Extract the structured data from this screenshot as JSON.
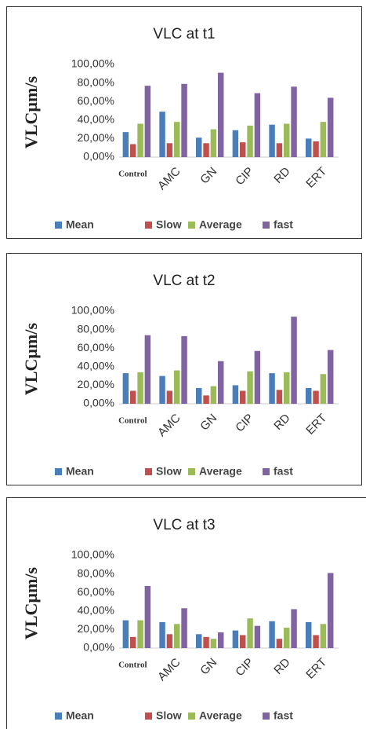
{
  "chart_data": [
    {
      "type": "bar",
      "title": "VLC at t1",
      "y_label": "VLCµm/s",
      "categories": [
        "Control",
        "AMC",
        "GN",
        "CIP",
        "RD",
        "ERT"
      ],
      "series": [
        {
          "name": "Mean",
          "color": "#4a7ebb",
          "values": [
            27,
            49,
            21,
            29,
            35,
            20
          ]
        },
        {
          "name": "Slow",
          "color": "#c0504d",
          "values": [
            14,
            15,
            15,
            16,
            15,
            17
          ]
        },
        {
          "name": "Average",
          "color": "#9bbb59",
          "values": [
            36,
            38,
            30,
            34,
            36,
            38
          ]
        },
        {
          "name": "fast",
          "color": "#8064a2",
          "values": [
            77,
            79,
            91,
            69,
            76,
            64
          ]
        }
      ],
      "ylim": [
        0,
        100
      ],
      "yticks": [
        {
          "value": 0,
          "label": "0,00%"
        },
        {
          "value": 20,
          "label": "20,00%"
        },
        {
          "value": 40,
          "label": "40,00%"
        },
        {
          "value": 60,
          "label": "60,00%"
        },
        {
          "value": 80,
          "label": "80,00%"
        },
        {
          "value": 100,
          "label": "100,00%"
        }
      ],
      "grid": false,
      "legend": "bottom"
    },
    {
      "type": "bar",
      "title": "VLC at t2",
      "y_label": "VLCµm/s",
      "categories": [
        "Control",
        "AMC",
        "GN",
        "CIP",
        "RD",
        "ERT"
      ],
      "series": [
        {
          "name": "Mean",
          "color": "#4a7ebb",
          "values": [
            33,
            30,
            17,
            20,
            33,
            17
          ]
        },
        {
          "name": "Slow",
          "color": "#c0504d",
          "values": [
            14,
            14,
            9,
            14,
            15,
            14
          ]
        },
        {
          "name": "Average",
          "color": "#9bbb59",
          "values": [
            34,
            36,
            19,
            35,
            34,
            32
          ]
        },
        {
          "name": "fast",
          "color": "#8064a2",
          "values": [
            74,
            73,
            46,
            57,
            94,
            58
          ]
        }
      ],
      "ylim": [
        0,
        100
      ],
      "yticks": [
        {
          "value": 0,
          "label": "0,00%"
        },
        {
          "value": 20,
          "label": "20,00%"
        },
        {
          "value": 40,
          "label": "40,00%"
        },
        {
          "value": 60,
          "label": "60,00%"
        },
        {
          "value": 80,
          "label": "80,00%"
        },
        {
          "value": 100,
          "label": "100,00%"
        }
      ],
      "grid": false,
      "legend": "bottom"
    },
    {
      "type": "bar",
      "title": "VLC at t3",
      "y_label": "VLCµm/s",
      "categories": [
        "Control",
        "AMC",
        "GN",
        "CIP",
        "RD",
        "ERT"
      ],
      "series": [
        {
          "name": "Mean",
          "color": "#4a7ebb",
          "values": [
            30,
            28,
            15,
            19,
            29,
            28
          ]
        },
        {
          "name": "Slow",
          "color": "#c0504d",
          "values": [
            12,
            15,
            12,
            14,
            10,
            14
          ]
        },
        {
          "name": "Average",
          "color": "#9bbb59",
          "values": [
            30,
            26,
            10,
            32,
            22,
            26
          ]
        },
        {
          "name": "fast",
          "color": "#8064a2",
          "values": [
            67,
            43,
            17,
            24,
            42,
            81
          ]
        }
      ],
      "ylim": [
        0,
        100
      ],
      "yticks": [
        {
          "value": 0,
          "label": "0,00%"
        },
        {
          "value": 20,
          "label": "20,00%"
        },
        {
          "value": 40,
          "label": "40,00%"
        },
        {
          "value": 60,
          "label": "60,00%"
        },
        {
          "value": 80,
          "label": "80,00%"
        },
        {
          "value": 100,
          "label": "100,00%"
        }
      ],
      "grid": false,
      "legend": "bottom"
    }
  ]
}
